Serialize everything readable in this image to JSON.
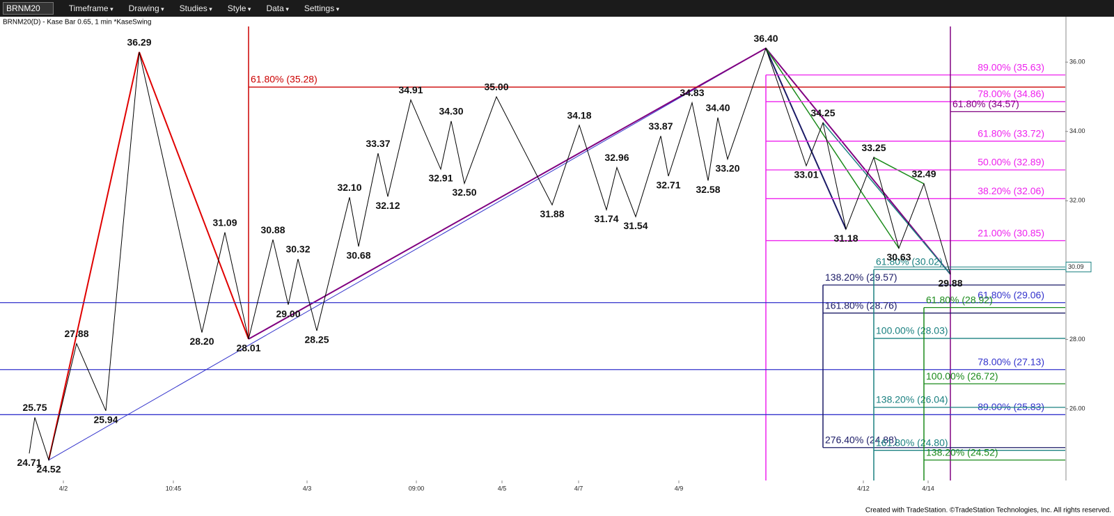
{
  "toolbar": {
    "symbol": "BRNM20",
    "items": [
      "Timeframe",
      "Drawing",
      "Studies",
      "Style",
      "Data",
      "Settings"
    ]
  },
  "chart_data": {
    "type": "line",
    "title": "BRNM20(D) - Kase Bar 0.65, 1 min  *KaseSwing",
    "footer": "Created with TradeStation. ©TradeStation Technologies, Inc. All rights reserved.",
    "x": [
      42,
      50,
      70,
      110,
      152,
      200,
      290,
      323,
      357,
      392,
      414,
      428,
      455,
      502,
      515,
      543,
      557,
      590,
      633,
      648,
      667,
      713,
      793,
      832,
      871,
      886,
      913,
      949,
      960,
      994,
      1017,
      1031,
      1045,
      1100,
      1158,
      1182,
      1215,
      1255,
      1291,
      1327,
      1365
    ],
    "values": [
      24.71,
      25.75,
      24.52,
      27.88,
      25.94,
      36.29,
      28.2,
      31.09,
      28.01,
      30.88,
      29,
      30.32,
      28.25,
      32.1,
      30.68,
      33.37,
      32.12,
      34.91,
      32.91,
      34.3,
      32.5,
      35,
      31.88,
      34.18,
      31.74,
      32.96,
      31.54,
      33.87,
      32.71,
      34.83,
      32.58,
      34.4,
      33.2,
      36.4,
      33.01,
      34.25,
      31.18,
      33.25,
      30.63,
      32.49,
      29.88
    ],
    "value_labels": [
      "24.71",
      "25.75",
      "24.52",
      "27.88",
      "25.94",
      "36.29",
      "28.20",
      "31.09",
      "28.01",
      "30.88",
      "29.00",
      "30.32",
      "28.25",
      "32.10",
      "30.68",
      "33.37",
      "32.12",
      "34.91",
      "32.91",
      "34.30",
      "32.50",
      "35.00",
      "31.88",
      "34.18",
      "31.74",
      "32.96",
      "31.54",
      "33.87",
      "32.71",
      "34.83",
      "32.58",
      "34.40",
      "33.20",
      "36.40",
      "33.01",
      "34.25",
      "31.18",
      "33.25",
      "30.63",
      "32.49",
      "29.88"
    ],
    "color": "#000000",
    "xlim": [
      0,
      1530
    ],
    "xticks": [
      {
        "value": 91,
        "label": "4/2"
      },
      {
        "value": 249,
        "label": "10:45"
      },
      {
        "value": 441,
        "label": "4/3"
      },
      {
        "value": 598,
        "label": "09:00"
      },
      {
        "value": 721,
        "label": "4/5"
      },
      {
        "value": 831,
        "label": "4/7"
      },
      {
        "value": 975,
        "label": "4/9"
      },
      {
        "value": 1240,
        "label": "4/12"
      },
      {
        "value": 1333,
        "label": "4/14"
      }
    ],
    "ylim": [
      23.93,
      37.31
    ],
    "yticks": [
      {
        "value": 26,
        "label": "26.00"
      },
      {
        "value": 28,
        "label": "28.00"
      },
      {
        "value": 30,
        "label": "30.00"
      },
      {
        "value": 32,
        "label": "32.00"
      },
      {
        "value": 34,
        "label": "34.00"
      },
      {
        "value": 36,
        "label": "36.00"
      }
    ],
    "last_price": 30.09,
    "fib_groups": [
      {
        "color": "#cc0000",
        "start": 357,
        "label_side": "left",
        "levels": [
          {
            "label": "61.80% (35.28)",
            "value": 35.28
          }
        ]
      },
      {
        "color": "#ee22ee",
        "start": 1100,
        "label_side": "right",
        "levels": [
          {
            "label": "89.00% (35.63)",
            "value": 35.63
          },
          {
            "label": "78.00% (34.86)",
            "value": 34.86
          },
          {
            "label": "61.80% (33.72)",
            "value": 33.72
          },
          {
            "label": "50.00% (32.89)",
            "value": 32.89
          },
          {
            "label": "38.20% (32.06)",
            "value": 32.06
          },
          {
            "label": "21.00% (30.85)",
            "value": 30.85
          }
        ]
      },
      {
        "color": "#800080",
        "start": 1365,
        "label_side": "left",
        "levels": [
          {
            "label": "61.80% (34.57)",
            "value": 34.57
          }
        ]
      },
      {
        "color": "#3333cc",
        "start": 0,
        "label_side": "right",
        "levels": [
          {
            "label": "61.80% (29.06)",
            "value": 29.06
          },
          {
            "label": "78.00% (27.13)",
            "value": 27.13
          },
          {
            "label": "89.00% (25.83)",
            "value": 25.83
          }
        ]
      },
      {
        "color": "#1a1a66",
        "start": 1182,
        "label_side": "left",
        "levels": [
          {
            "label": "138.20% (29.57)",
            "value": 29.57
          },
          {
            "label": "161.80% (28.76)",
            "value": 28.76
          },
          {
            "label": "276.40% (24.88)",
            "value": 24.88
          }
        ]
      },
      {
        "color": "#1a8080",
        "start": 1255,
        "label_side": "left",
        "levels": [
          {
            "label": "61.80% (30.02)",
            "value": 30.02
          },
          {
            "label": "100.00% (28.03)",
            "value": 28.03
          },
          {
            "label": "138.20% (26.04)",
            "value": 26.04
          },
          {
            "label": "161.80% (24.80)",
            "value": 24.8
          }
        ]
      },
      {
        "color": "#1a8a1a",
        "start": 1327,
        "label_side": "left",
        "levels": [
          {
            "label": "61.80% (28.92)",
            "value": 28.92
          },
          {
            "label": "100.00% (26.72)",
            "value": 26.72
          },
          {
            "label": "138.20% (24.52)",
            "value": 24.52
          }
        ]
      }
    ]
  }
}
